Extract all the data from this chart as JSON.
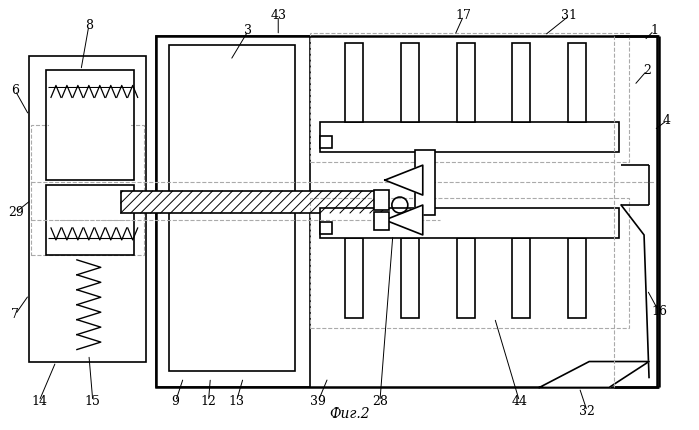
{
  "title": "Фиг.2",
  "bg_color": "#ffffff",
  "line_color": "#000000",
  "dashed_color": "#aaaaaa",
  "fig_width": 6.99,
  "fig_height": 4.3,
  "dpi": 100
}
